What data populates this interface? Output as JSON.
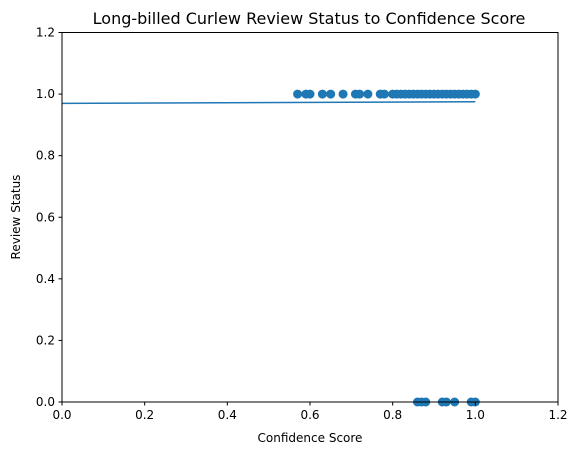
{
  "chart_data": {
    "type": "scatter",
    "title": "Long-billed Curlew Review Status to Confidence Score",
    "xlabel": "Confidence Score",
    "ylabel": "Review Status",
    "xlim": [
      0.0,
      1.2
    ],
    "ylim": [
      0.0,
      1.2
    ],
    "xticks": [
      "0.0",
      "0.2",
      "0.4",
      "0.6",
      "0.8",
      "1.0",
      "1.2"
    ],
    "yticks": [
      "0.0",
      "0.2",
      "0.4",
      "0.6",
      "0.8",
      "1.0",
      "1.2"
    ],
    "grid": false,
    "color": "#1f77b4",
    "points": [
      {
        "x": 0.57,
        "y": 1.0
      },
      {
        "x": 0.59,
        "y": 1.0
      },
      {
        "x": 0.6,
        "y": 1.0
      },
      {
        "x": 0.63,
        "y": 1.0
      },
      {
        "x": 0.65,
        "y": 1.0
      },
      {
        "x": 0.68,
        "y": 1.0
      },
      {
        "x": 0.71,
        "y": 1.0
      },
      {
        "x": 0.72,
        "y": 1.0
      },
      {
        "x": 0.74,
        "y": 1.0
      },
      {
        "x": 0.77,
        "y": 1.0
      },
      {
        "x": 0.78,
        "y": 1.0
      },
      {
        "x": 0.8,
        "y": 1.0
      },
      {
        "x": 0.81,
        "y": 1.0
      },
      {
        "x": 0.82,
        "y": 1.0
      },
      {
        "x": 0.83,
        "y": 1.0
      },
      {
        "x": 0.84,
        "y": 1.0
      },
      {
        "x": 0.85,
        "y": 1.0
      },
      {
        "x": 0.86,
        "y": 1.0
      },
      {
        "x": 0.87,
        "y": 1.0
      },
      {
        "x": 0.88,
        "y": 1.0
      },
      {
        "x": 0.89,
        "y": 1.0
      },
      {
        "x": 0.9,
        "y": 1.0
      },
      {
        "x": 0.91,
        "y": 1.0
      },
      {
        "x": 0.92,
        "y": 1.0
      },
      {
        "x": 0.93,
        "y": 1.0
      },
      {
        "x": 0.94,
        "y": 1.0
      },
      {
        "x": 0.95,
        "y": 1.0
      },
      {
        "x": 0.96,
        "y": 1.0
      },
      {
        "x": 0.97,
        "y": 1.0
      },
      {
        "x": 0.98,
        "y": 1.0
      },
      {
        "x": 0.99,
        "y": 1.0
      },
      {
        "x": 1.0,
        "y": 1.0
      },
      {
        "x": 0.86,
        "y": 0.0
      },
      {
        "x": 0.87,
        "y": 0.0
      },
      {
        "x": 0.88,
        "y": 0.0
      },
      {
        "x": 0.92,
        "y": 0.0
      },
      {
        "x": 0.93,
        "y": 0.0
      },
      {
        "x": 0.95,
        "y": 0.0
      },
      {
        "x": 0.99,
        "y": 0.0
      },
      {
        "x": 1.0,
        "y": 0.0
      }
    ],
    "trend_line": {
      "x": [
        0.0,
        1.0
      ],
      "y": [
        0.97,
        0.975
      ]
    }
  }
}
